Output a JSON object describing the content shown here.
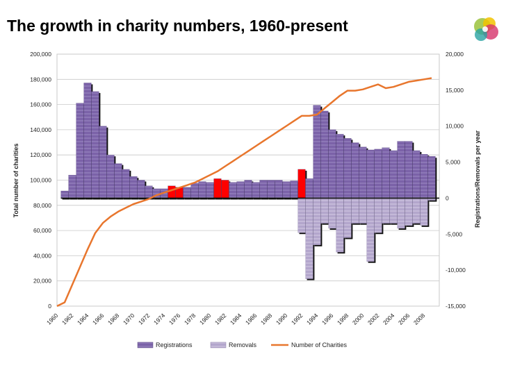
{
  "page": {
    "title": "The growth in charity numbers, 1960-present",
    "logo_icon": "commission-logo-icon"
  },
  "chart_data": {
    "type": "bar+line",
    "title": "The growth in charity numbers, 1960-present",
    "x_labels": [
      "1960",
      "1962",
      "1964",
      "1966",
      "1968",
      "1970",
      "1972",
      "1974",
      "1976",
      "1978",
      "1980",
      "1982",
      "1984",
      "1986",
      "1988",
      "1990",
      "1992",
      "1994",
      "1996",
      "1998",
      "2000",
      "2002",
      "2004",
      "2006",
      "2008"
    ],
    "years": [
      1961,
      1962,
      1963,
      1964,
      1965,
      1966,
      1967,
      1968,
      1969,
      1970,
      1971,
      1972,
      1973,
      1974,
      1975,
      1976,
      1977,
      1978,
      1979,
      1980,
      1981,
      1982,
      1983,
      1984,
      1985,
      1986,
      1987,
      1988,
      1989,
      1990,
      1991,
      1992,
      1993,
      1994,
      1995,
      1996,
      1997,
      1998,
      1999,
      2000,
      2001,
      2002,
      2003,
      2004,
      2005,
      2006,
      2007,
      2008,
      2009
    ],
    "left_axis": {
      "label": "Total number of charities",
      "min": 0,
      "max": 200000,
      "step": 20000,
      "tick_labels": [
        "0",
        "20,000",
        "40,000",
        "60,000",
        "80,000",
        "100,000",
        "120,000",
        "140,000",
        "160,000",
        "180,000",
        "200,000"
      ]
    },
    "right_axis": {
      "label": "Registrations/Removals per year",
      "min": -15000,
      "max": 20000,
      "step": 5000,
      "tick_labels": [
        "-15,000",
        "-10,000",
        "-5,000",
        "0",
        "5,000",
        "10,000",
        "15,000",
        "20,000"
      ]
    },
    "series": [
      {
        "name": "Registrations",
        "axis": "right",
        "color": "#7b62a8",
        "values": [
          1000,
          3200,
          13200,
          16000,
          14800,
          10000,
          6000,
          4800,
          4000,
          3000,
          2500,
          1700,
          1300,
          1300,
          1700,
          1500,
          1500,
          2100,
          2300,
          2200,
          2700,
          2500,
          2200,
          2300,
          2500,
          2200,
          2500,
          2500,
          2500,
          2300,
          2400,
          4000,
          2700,
          12900,
          12100,
          9500,
          8900,
          8300,
          7700,
          7100,
          6700,
          6800,
          7000,
          6600,
          7900,
          7900,
          6600,
          6100,
          5800
        ]
      },
      {
        "name": "Removals",
        "axis": "right",
        "color": "#b3a6cc",
        "values": [
          0,
          0,
          0,
          0,
          0,
          0,
          0,
          0,
          0,
          0,
          0,
          0,
          0,
          0,
          0,
          0,
          0,
          0,
          0,
          0,
          0,
          0,
          0,
          0,
          0,
          0,
          0,
          0,
          0,
          0,
          0,
          -4800,
          -11200,
          -6500,
          -3500,
          -4200,
          -7500,
          -5500,
          -3500,
          -3500,
          -8800,
          -4800,
          -3500,
          -3500,
          -4200,
          -3800,
          -3500,
          -3800,
          -300
        ]
      },
      {
        "name": "Number of Charities",
        "axis": "left",
        "color": "#e8762d",
        "years": [
          1960,
          1961,
          1962,
          1963,
          1964,
          1965,
          1966,
          1967,
          1968,
          1969,
          1970,
          1971,
          1972,
          1973,
          1974,
          1975,
          1976,
          1977,
          1978,
          1979,
          1980,
          1981,
          1982,
          1983,
          1984,
          1985,
          1986,
          1987,
          1988,
          1989,
          1990,
          1991,
          1992,
          1993,
          1994,
          1995,
          1996,
          1997,
          1998,
          1999,
          2000,
          2001,
          2002,
          2003,
          2004,
          2005,
          2006,
          2007,
          2008,
          2009
        ],
        "values": [
          0,
          3000,
          17000,
          31000,
          45000,
          58000,
          66000,
          71000,
          75000,
          78000,
          81000,
          83000,
          85000,
          88000,
          90000,
          92000,
          94000,
          96000,
          98000,
          101000,
          104000,
          107000,
          111000,
          115000,
          119000,
          123000,
          127000,
          131000,
          135000,
          139000,
          143000,
          147000,
          151000,
          151000,
          152000,
          157000,
          162000,
          167000,
          171000,
          171000,
          172000,
          174000,
          176000,
          173000,
          174000,
          176000,
          178000,
          179000,
          180000,
          181000
        ]
      }
    ],
    "highlight_years": [
      1975,
      1976,
      1981,
      1982,
      1992
    ],
    "highlight_color": "#ff0000",
    "legend": {
      "position": "bottom",
      "entries": [
        "Registrations",
        "Removals",
        "Number of Charities"
      ]
    }
  }
}
